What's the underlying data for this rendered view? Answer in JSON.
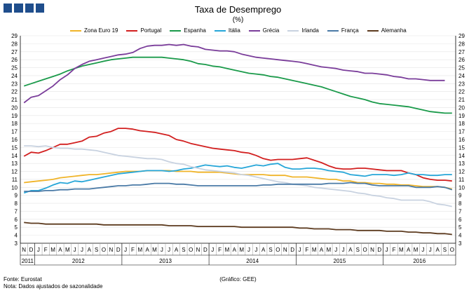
{
  "header": {
    "title": "Taxa de Desemprego",
    "subtitle": "(%)"
  },
  "footer": {
    "source": "Fonte: Eurostat",
    "note": "Nota: Dados ajustados de sazonalidade",
    "credit": "(Gráfico: GEE)"
  },
  "colors": {
    "zona_euro": "#f0b429",
    "portugal": "#d21f1f",
    "espanha": "#1a9a4a",
    "italia": "#26a6d8",
    "grecia": "#7a3d9a",
    "irlanda": "#c8d2e0",
    "franca": "#4a7aa6",
    "alemanha": "#5c3a1e",
    "logo": "#1f4e8c",
    "grid": "#e4e4e4",
    "axis": "#000000"
  },
  "chart_data": {
    "type": "line",
    "title": "Taxa de Desemprego",
    "subtitle": "(%)",
    "ylim": [
      3,
      29
    ],
    "yticks": [
      3,
      4,
      5,
      6,
      7,
      8,
      9,
      10,
      11,
      12,
      13,
      14,
      15,
      16,
      17,
      18,
      19,
      20,
      21,
      22,
      23,
      24,
      25,
      26,
      27,
      28,
      29
    ],
    "month_labels": [
      "N",
      "D",
      "J",
      "F",
      "M",
      "A",
      "M",
      "J",
      "J",
      "A",
      "S",
      "O",
      "N",
      "D",
      "J",
      "F",
      "M",
      "A",
      "M",
      "J",
      "J",
      "A",
      "S",
      "O",
      "N",
      "D",
      "J",
      "F",
      "M",
      "A",
      "M",
      "J",
      "J",
      "A",
      "S",
      "O",
      "N",
      "D",
      "J",
      "F",
      "M",
      "A",
      "M",
      "J",
      "J",
      "A",
      "S",
      "O",
      "N",
      "D",
      "J",
      "F",
      "M",
      "A",
      "M",
      "J",
      "J",
      "A",
      "S",
      "O"
    ],
    "years": [
      {
        "label": "2011",
        "start": 0,
        "end": 1
      },
      {
        "label": "2012",
        "start": 2,
        "end": 13
      },
      {
        "label": "2013",
        "start": 14,
        "end": 25
      },
      {
        "label": "2014",
        "start": 26,
        "end": 37
      },
      {
        "label": "2015",
        "start": 38,
        "end": 49
      },
      {
        "label": "2016",
        "start": 50,
        "end": 59
      }
    ],
    "series": [
      {
        "name": "Zona Euro 19",
        "key": "zona_euro",
        "values": [
          10.6,
          10.7,
          10.8,
          10.9,
          11.0,
          11.2,
          11.3,
          11.4,
          11.5,
          11.6,
          11.6,
          11.7,
          11.8,
          11.9,
          12.0,
          12.0,
          12.0,
          12.1,
          12.1,
          12.1,
          12.1,
          12.0,
          12.0,
          12.0,
          11.9,
          11.9,
          11.9,
          11.9,
          11.8,
          11.7,
          11.6,
          11.6,
          11.6,
          11.6,
          11.5,
          11.5,
          11.5,
          11.3,
          11.3,
          11.3,
          11.2,
          11.1,
          11.0,
          11.0,
          10.8,
          10.8,
          10.6,
          10.6,
          10.5,
          10.5,
          10.4,
          10.4,
          10.3,
          10.3,
          10.2,
          10.1,
          10.1,
          10.1,
          10.0,
          9.8
        ]
      },
      {
        "name": "Portugal",
        "key": "portugal",
        "values": [
          13.9,
          14.4,
          14.3,
          14.6,
          15.0,
          15.4,
          15.4,
          15.6,
          15.8,
          16.3,
          16.4,
          16.8,
          17.0,
          17.4,
          17.4,
          17.3,
          17.1,
          17.0,
          16.9,
          16.7,
          16.5,
          16.0,
          15.8,
          15.5,
          15.3,
          15.1,
          14.9,
          14.8,
          14.7,
          14.6,
          14.4,
          14.3,
          14.0,
          13.6,
          13.4,
          13.5,
          13.5,
          13.5,
          13.6,
          13.7,
          13.4,
          13.1,
          12.7,
          12.4,
          12.3,
          12.3,
          12.4,
          12.4,
          12.3,
          12.2,
          12.1,
          12.1,
          12.1,
          11.8,
          11.6,
          11.2,
          11.0,
          10.9,
          10.9,
          10.8
        ]
      },
      {
        "name": "Espanha",
        "key": "espanha",
        "values": [
          22.7,
          23.0,
          23.3,
          23.6,
          23.9,
          24.2,
          24.6,
          24.9,
          25.2,
          25.4,
          25.6,
          25.8,
          26.0,
          26.1,
          26.2,
          26.3,
          26.3,
          26.3,
          26.3,
          26.3,
          26.2,
          26.1,
          26.0,
          25.8,
          25.5,
          25.4,
          25.2,
          25.1,
          24.9,
          24.7,
          24.5,
          24.3,
          24.2,
          24.1,
          23.9,
          23.8,
          23.6,
          23.4,
          23.2,
          23.0,
          22.8,
          22.6,
          22.3,
          22.0,
          21.7,
          21.4,
          21.2,
          21.0,
          20.7,
          20.5,
          20.4,
          20.3,
          20.2,
          20.1,
          19.9,
          19.7,
          19.5,
          19.4,
          19.3,
          19.3
        ]
      },
      {
        "name": "Itália",
        "key": "italia",
        "values": [
          9.3,
          9.6,
          9.6,
          9.9,
          10.3,
          10.6,
          10.5,
          10.8,
          10.7,
          10.9,
          11.1,
          11.3,
          11.5,
          11.7,
          11.8,
          11.9,
          12.0,
          12.1,
          12.1,
          12.1,
          12.0,
          12.1,
          12.3,
          12.4,
          12.6,
          12.8,
          12.7,
          12.6,
          12.7,
          12.5,
          12.4,
          12.6,
          12.8,
          12.7,
          12.9,
          13.0,
          12.5,
          12.3,
          12.3,
          12.4,
          12.4,
          12.3,
          12.1,
          12.0,
          11.9,
          11.6,
          11.5,
          11.4,
          11.6,
          11.6,
          11.6,
          11.5,
          11.6,
          11.8,
          11.6,
          11.6,
          11.5,
          11.5,
          11.6,
          11.6
        ]
      },
      {
        "name": "Grécia",
        "key": "grecia",
        "values": [
          20.6,
          21.3,
          21.5,
          22.1,
          22.7,
          23.5,
          24.1,
          24.9,
          25.4,
          25.8,
          26.0,
          26.2,
          26.4,
          26.6,
          26.7,
          26.9,
          27.4,
          27.7,
          27.8,
          27.8,
          27.9,
          27.8,
          27.9,
          27.7,
          27.6,
          27.3,
          27.2,
          27.1,
          27.1,
          27.0,
          26.7,
          26.5,
          26.3,
          26.2,
          26.1,
          26.0,
          25.9,
          25.8,
          25.7,
          25.5,
          25.3,
          25.1,
          25.0,
          24.9,
          24.7,
          24.6,
          24.5,
          24.3,
          24.3,
          24.2,
          24.1,
          23.9,
          23.8,
          23.6,
          23.6,
          23.5,
          23.4,
          23.4,
          23.4
        ]
      },
      {
        "name": "Irlanda",
        "key": "irlanda",
        "values": [
          15.2,
          15.2,
          15.1,
          15.2,
          15.0,
          14.9,
          14.9,
          14.8,
          14.8,
          14.7,
          14.6,
          14.4,
          14.2,
          14.0,
          13.9,
          13.8,
          13.7,
          13.6,
          13.6,
          13.5,
          13.2,
          13.0,
          12.9,
          12.6,
          12.4,
          12.2,
          12.1,
          12.0,
          11.9,
          11.8,
          11.6,
          11.5,
          11.3,
          11.1,
          10.9,
          10.7,
          10.6,
          10.4,
          10.3,
          10.2,
          10.0,
          9.9,
          9.8,
          9.7,
          9.6,
          9.5,
          9.3,
          9.2,
          9.0,
          8.9,
          8.7,
          8.6,
          8.4,
          8.4,
          8.4,
          8.4,
          8.2,
          7.9,
          7.8,
          7.6
        ]
      },
      {
        "name": "França",
        "key": "franca",
        "values": [
          9.5,
          9.5,
          9.5,
          9.6,
          9.6,
          9.7,
          9.7,
          9.8,
          9.8,
          9.8,
          9.9,
          10.0,
          10.1,
          10.2,
          10.2,
          10.3,
          10.3,
          10.4,
          10.5,
          10.5,
          10.5,
          10.4,
          10.4,
          10.3,
          10.2,
          10.2,
          10.2,
          10.2,
          10.2,
          10.2,
          10.2,
          10.2,
          10.2,
          10.3,
          10.3,
          10.4,
          10.4,
          10.4,
          10.4,
          10.4,
          10.4,
          10.4,
          10.5,
          10.5,
          10.5,
          10.6,
          10.5,
          10.5,
          10.3,
          10.2,
          10.2,
          10.2,
          10.2,
          10.2,
          10.0,
          10.0,
          10.0,
          10.1,
          10.0,
          9.7
        ]
      },
      {
        "name": "Alemanha",
        "key": "alemanha",
        "values": [
          5.6,
          5.5,
          5.5,
          5.4,
          5.4,
          5.4,
          5.4,
          5.4,
          5.4,
          5.4,
          5.4,
          5.3,
          5.3,
          5.3,
          5.3,
          5.3,
          5.3,
          5.3,
          5.3,
          5.3,
          5.2,
          5.2,
          5.2,
          5.2,
          5.1,
          5.1,
          5.1,
          5.1,
          5.1,
          5.1,
          5.0,
          5.0,
          5.0,
          5.0,
          5.0,
          5.0,
          5.0,
          5.0,
          4.9,
          4.9,
          4.8,
          4.8,
          4.8,
          4.7,
          4.7,
          4.7,
          4.6,
          4.6,
          4.6,
          4.6,
          4.5,
          4.5,
          4.5,
          4.4,
          4.4,
          4.3,
          4.3,
          4.2,
          4.2,
          4.1
        ]
      }
    ]
  }
}
